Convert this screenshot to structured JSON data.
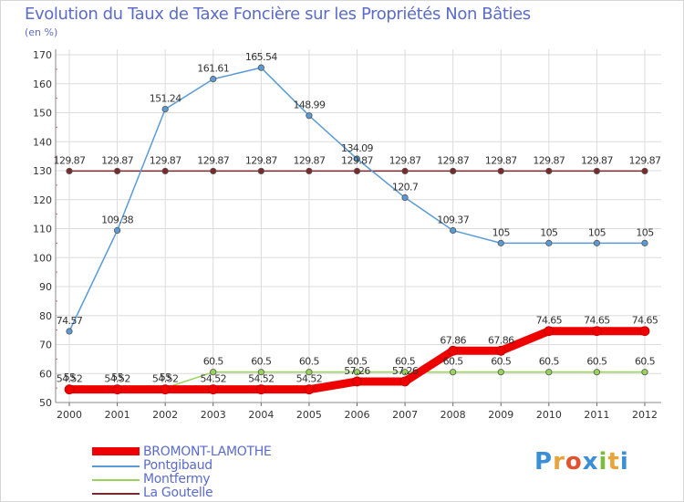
{
  "header": {
    "title": "Evolution du Taux de Taxe Foncière sur les Propriétés Non Bâties",
    "unit": "(en %)"
  },
  "logo": {
    "letters": [
      "P",
      "r",
      "o",
      "x",
      "i",
      "t",
      "i"
    ],
    "colors": [
      "#3a8fd6",
      "#e8a43a",
      "#e0532d",
      "#3a8fd6",
      "#7dbb3a",
      "#e8a43a",
      "#3a8fd6"
    ]
  },
  "chart_data": {
    "type": "line",
    "title": "Evolution du Taux de Taxe Foncière sur les Propriétés Non Bâties",
    "ylabel": "(en %)",
    "xlabel": "",
    "x": [
      "2000",
      "2001",
      "2002",
      "2003",
      "2004",
      "2005",
      "2006",
      "2007",
      "2008",
      "2009",
      "2010",
      "2011",
      "2012"
    ],
    "ylim": [
      50,
      170
    ],
    "yticks": [
      50,
      60,
      70,
      80,
      90,
      100,
      110,
      120,
      130,
      140,
      150,
      160,
      170
    ],
    "grid": true,
    "series": [
      {
        "name": "La Goutelle",
        "color": "#7a2a2a",
        "values": [
          129.87,
          129.87,
          129.87,
          129.87,
          129.87,
          129.87,
          129.87,
          129.87,
          129.87,
          129.87,
          129.87,
          129.87,
          129.87
        ],
        "labels": [
          "129.87",
          "129.87",
          "129.87",
          "129.87",
          "129.87",
          "129.87",
          "129.87",
          "129.87",
          "129.87",
          "129.87",
          "129.87",
          "129.87",
          "129.87"
        ]
      },
      {
        "name": "Pontgibaud",
        "color": "#5b9bd5",
        "values": [
          74.57,
          109.38,
          151.24,
          161.61,
          165.54,
          148.99,
          134.09,
          120.7,
          109.37,
          105,
          105,
          105,
          105
        ],
        "labels": [
          "74.57",
          "109.38",
          "151.24",
          "161.61",
          "165.54",
          "148.99",
          "134.09",
          "120.7",
          "109.37",
          "105",
          "105",
          "105",
          "105"
        ]
      },
      {
        "name": "Montfermy",
        "color": "#9ad35a",
        "values": [
          55,
          55,
          55,
          60.5,
          60.5,
          60.5,
          60.5,
          60.5,
          60.5,
          60.5,
          60.5,
          60.5,
          60.5
        ],
        "labels": [
          "55",
          "55",
          "55",
          "60.5",
          "60.5",
          "60.5",
          "60.5",
          "60.5",
          "60.5",
          "60.5",
          "60.5",
          "60.5",
          "60.5"
        ]
      },
      {
        "name": "BROMONT-LAMOTHE",
        "color": "#ee0000",
        "values": [
          54.52,
          54.52,
          54.52,
          54.52,
          54.52,
          54.52,
          57.26,
          57.26,
          67.86,
          67.86,
          74.65,
          74.65,
          74.65
        ],
        "labels": [
          "54.52",
          "54.52",
          "54.52",
          "54.52",
          "54.52",
          "54.52",
          "57.26",
          "57.26",
          "67.86",
          "67.86",
          "74.65",
          "74.65",
          "74.65"
        ]
      }
    ],
    "legend": [
      "BROMONT-LAMOTHE",
      "Pontgibaud",
      "Montfermy",
      "La Goutelle"
    ],
    "legend_position": "bottom-left"
  }
}
